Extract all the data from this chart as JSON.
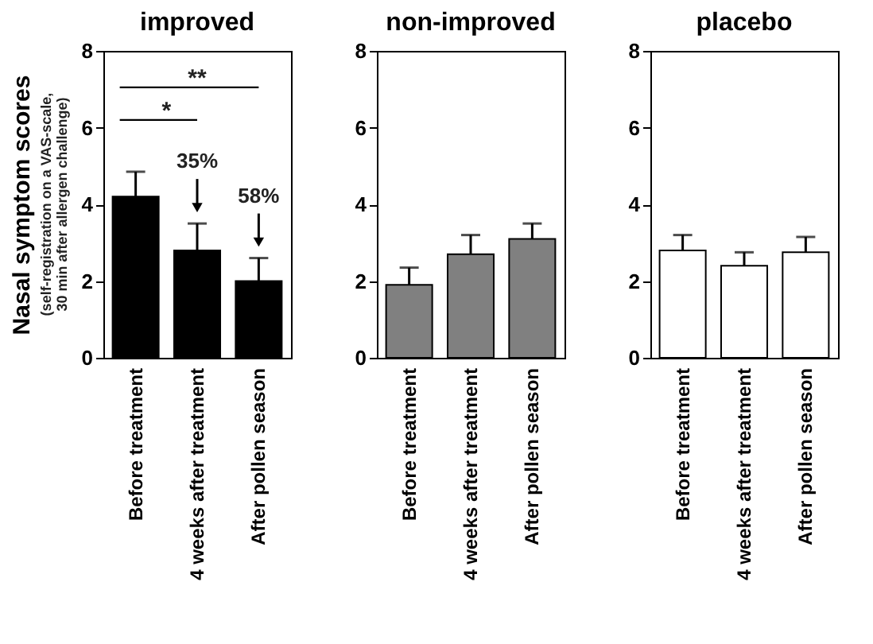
{
  "chart_data": [
    {
      "type": "bar",
      "title": "improved",
      "ylabel": "Nasal symptom scores",
      "categories": [
        "Before treatment",
        "4 weeks after treatment",
        "After pollen season"
      ],
      "values": [
        4.2,
        2.8,
        2.0
      ],
      "color": "#000000",
      "errors": [
        [
          4.2,
          4.85
        ],
        [
          2.8,
          3.5
        ],
        [
          2.0,
          2.6
        ]
      ],
      "ylim": [
        0,
        8
      ],
      "yticks": [
        0,
        2,
        4,
        6,
        8
      ],
      "grid": false,
      "annotations": [
        "(self-registration on a VAS-scale, 30 min after allergen challenge)",
        "*",
        "**",
        "35%",
        "58%"
      ]
    },
    {
      "type": "bar",
      "title": "non-improved",
      "categories": [
        "Before treatment",
        "4 weeks after treatment",
        "After pollen season"
      ],
      "values": [
        1.9,
        2.7,
        3.1
      ],
      "color": "#808080",
      "errors": [
        [
          1.9,
          2.35
        ],
        [
          2.7,
          3.2
        ],
        [
          3.1,
          3.5
        ]
      ],
      "ylim": [
        0,
        8
      ],
      "yticks": [
        0,
        2,
        4,
        6,
        8
      ],
      "grid": false
    },
    {
      "type": "bar",
      "title": "placebo",
      "categories": [
        "Before treatment",
        "4 weeks after treatment",
        "After pollen season"
      ],
      "values": [
        2.8,
        2.4,
        2.75
      ],
      "color": "#ffffff",
      "errors": [
        [
          2.8,
          3.2
        ],
        [
          2.4,
          2.75
        ],
        [
          2.75,
          3.15
        ]
      ],
      "ylim": [
        0,
        8
      ],
      "yticks": [
        0,
        2,
        4,
        6,
        8
      ],
      "grid": false
    }
  ]
}
